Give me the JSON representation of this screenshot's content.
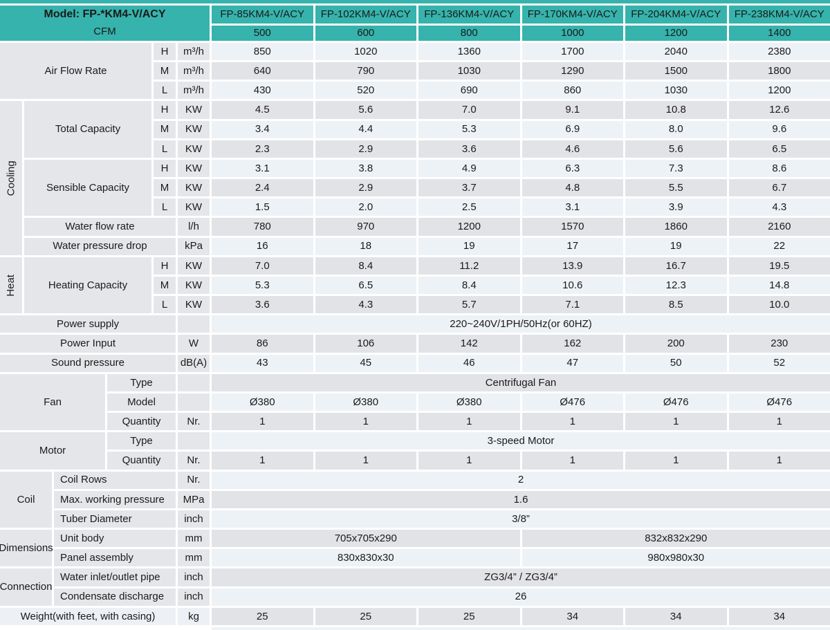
{
  "header": {
    "model_label": "Model: FP-*KM4-V/ACY",
    "cfm_label": "CFM",
    "models": [
      "FP-85KM4-V/ACY",
      "FP-102KM4-V/ACY",
      "FP-136KM4-V/ACY",
      "FP-170KM4-V/ACY",
      "FP-204KM4-V/ACY",
      "FP-238KM4-V/ACY"
    ],
    "cfm_values": [
      "500",
      "600",
      "800",
      "1000",
      "1200",
      "1400"
    ]
  },
  "air_flow": {
    "label": "Air Flow Rate",
    "rows": [
      {
        "speed": "H",
        "unit": "m³/h",
        "values": [
          "850",
          "1020",
          "1360",
          "1700",
          "2040",
          "2380"
        ]
      },
      {
        "speed": "M",
        "unit": "m³/h",
        "values": [
          "640",
          "790",
          "1030",
          "1290",
          "1500",
          "1800"
        ]
      },
      {
        "speed": "L",
        "unit": "m³/h",
        "values": [
          "430",
          "520",
          "690",
          "860",
          "1030",
          "1200"
        ]
      }
    ]
  },
  "cooling": {
    "label": "Cooling",
    "total_capacity": {
      "label": "Total Capacity",
      "rows": [
        {
          "speed": "H",
          "unit": "KW",
          "values": [
            "4.5",
            "5.6",
            "7.0",
            "9.1",
            "10.8",
            "12.6"
          ]
        },
        {
          "speed": "M",
          "unit": "KW",
          "values": [
            "3.4",
            "4.4",
            "5.3",
            "6.9",
            "8.0",
            "9.6"
          ]
        },
        {
          "speed": "L",
          "unit": "KW",
          "values": [
            "2.3",
            "2.9",
            "3.6",
            "4.6",
            "5.6",
            "6.5"
          ]
        }
      ]
    },
    "sensible_capacity": {
      "label": "Sensible Capacity",
      "rows": [
        {
          "speed": "H",
          "unit": "KW",
          "values": [
            "3.1",
            "3.8",
            "4.9",
            "6.3",
            "7.3",
            "8.6"
          ]
        },
        {
          "speed": "M",
          "unit": "KW",
          "values": [
            "2.4",
            "2.9",
            "3.7",
            "4.8",
            "5.5",
            "6.7"
          ]
        },
        {
          "speed": "L",
          "unit": "KW",
          "values": [
            "1.5",
            "2.0",
            "2.5",
            "3.1",
            "3.9",
            "4.3"
          ]
        }
      ]
    },
    "water_flow_rate": {
      "label": "Water flow rate",
      "unit": "l/h",
      "values": [
        "780",
        "970",
        "1200",
        "1570",
        "1860",
        "2160"
      ]
    },
    "water_pressure_drop": {
      "label": "Water pressure drop",
      "unit": "kPa",
      "values": [
        "16",
        "18",
        "19",
        "17",
        "19",
        "22"
      ]
    }
  },
  "heat": {
    "label": "Heat",
    "heating_capacity": {
      "label": "Heating Capacity",
      "rows": [
        {
          "speed": "H",
          "unit": "KW",
          "values": [
            "7.0",
            "8.4",
            "11.2",
            "13.9",
            "16.7",
            "19.5"
          ]
        },
        {
          "speed": "M",
          "unit": "KW",
          "values": [
            "5.3",
            "6.5",
            "8.4",
            "10.6",
            "12.3",
            "14.8"
          ]
        },
        {
          "speed": "L",
          "unit": "KW",
          "values": [
            "3.6",
            "4.3",
            "5.7",
            "7.1",
            "8.5",
            "10.0"
          ]
        }
      ]
    }
  },
  "power_supply": {
    "label": "Power supply",
    "value": "220~240V/1PH/50Hz(or 60HZ)"
  },
  "power_input": {
    "label": "Power Input",
    "unit": "W",
    "values": [
      "86",
      "106",
      "142",
      "162",
      "200",
      "230"
    ]
  },
  "sound_pressure": {
    "label": "Sound pressure",
    "unit": "dB(A)",
    "values": [
      "43",
      "45",
      "46",
      "47",
      "50",
      "52"
    ]
  },
  "fan": {
    "label": "Fan",
    "type": {
      "label": "Type",
      "value": "Centrifugal Fan"
    },
    "model": {
      "label": "Model",
      "values": [
        "Ø380",
        "Ø380",
        "Ø380",
        "Ø476",
        "Ø476",
        "Ø476"
      ]
    },
    "quantity": {
      "label": "Quantity",
      "unit": "Nr.",
      "values": [
        "1",
        "1",
        "1",
        "1",
        "1",
        "1"
      ]
    }
  },
  "motor": {
    "label": "Motor",
    "type": {
      "label": "Type",
      "value": "3-speed Motor"
    },
    "quantity": {
      "label": "Quantity",
      "unit": "Nr.",
      "values": [
        "1",
        "1",
        "1",
        "1",
        "1",
        "1"
      ]
    }
  },
  "coil": {
    "label": "Coil",
    "coil_rows": {
      "label": "Coil Rows",
      "unit": "Nr.",
      "value": "2"
    },
    "max_working_pressure": {
      "label": "Max. working pressure",
      "unit": "MPa",
      "value": "1.6"
    },
    "tuber_diameter": {
      "label": "Tuber Diameter",
      "unit": "inch",
      "value": "3/8”"
    }
  },
  "dimensions": {
    "label": "Dimensions",
    "unit_body": {
      "label": "Unit body",
      "unit": "mm",
      "value_left": "705x705x290",
      "value_right": "832x832x290"
    },
    "panel_assembly": {
      "label": "Panel assembly",
      "unit": "mm",
      "value_left": "830x830x30",
      "value_right": "980x980x30"
    }
  },
  "connection": {
    "label": "Connection",
    "water_inlet_outlet_pipe": {
      "label": "Water inlet/outlet pipe",
      "unit": "inch",
      "value": "ZG3/4” / ZG3/4”"
    },
    "condensate_discharge": {
      "label": "Condensate discharge",
      "unit": "inch",
      "value": "26"
    }
  },
  "weight": {
    "label": "Weight(with feet, with casing)",
    "unit": "kg",
    "values": [
      "25",
      "25",
      "25",
      "34",
      "34",
      "34"
    ]
  },
  "colors": {
    "teal": "#36b3ac",
    "row_light": "#edf2f6",
    "row_gray": "#e2e3e6",
    "label_bg": "#e5e6e9"
  }
}
